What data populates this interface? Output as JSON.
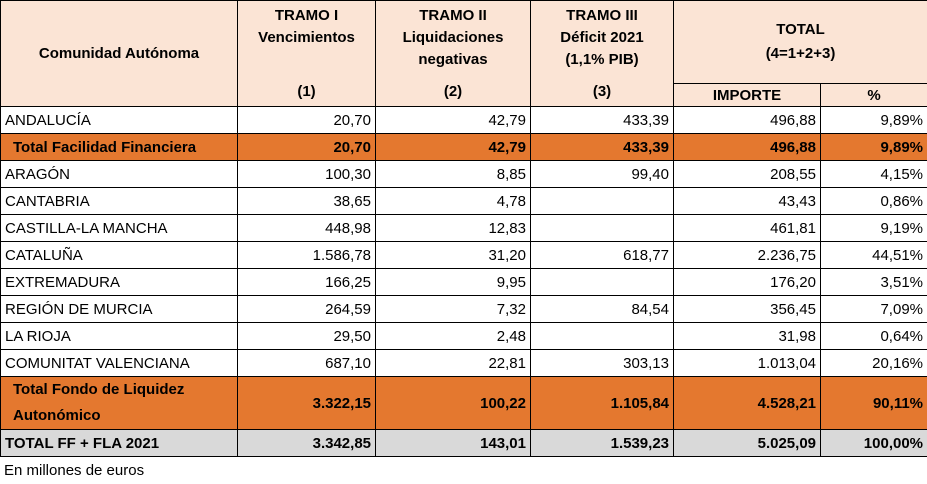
{
  "table": {
    "header": {
      "region": "Comunidad Autónoma",
      "tramo_1": {
        "title": "TRAMO I",
        "subtitle": "Vencimientos",
        "number": "(1)"
      },
      "tramo_2": {
        "title": "TRAMO II",
        "subtitle": "Liquidaciones negativas",
        "number": "(2)"
      },
      "tramo_3": {
        "title": "TRAMO III",
        "subtitle": "Déficit 2021",
        "note": "(1,1% PIB)",
        "number": "(3)"
      },
      "total": {
        "title": "TOTAL",
        "formula": "(4=1+2+3)",
        "importe": "IMPORTE",
        "percent": "%"
      }
    },
    "rows": [
      [
        "ANDALUCÍA",
        "20,70",
        "42,79",
        "433,39",
        "496,88",
        "9,89%"
      ],
      [
        "Total Facilidad Financiera",
        "20,70",
        "42,79",
        "433,39",
        "496,88",
        "9,89%"
      ],
      [
        "ARAGÓN",
        "100,30",
        "8,85",
        "99,40",
        "208,55",
        "4,15%"
      ],
      [
        "CANTABRIA",
        "38,65",
        "4,78",
        null,
        "43,43",
        "0,86%"
      ],
      [
        "CASTILLA-LA MANCHA",
        "448,98",
        "12,83",
        null,
        "461,81",
        "9,19%"
      ],
      [
        "CATALUÑA",
        "1.586,78",
        "31,20",
        "618,77",
        "2.236,75",
        "44,51%"
      ],
      [
        "EXTREMADURA",
        "166,25",
        "9,95",
        null,
        "176,20",
        "3,51%"
      ],
      [
        "REGIÓN DE MURCIA",
        "264,59",
        "7,32",
        "84,54",
        "356,45",
        "7,09%"
      ],
      [
        "LA RIOJA",
        "29,50",
        "2,48",
        null,
        "31,98",
        "0,64%"
      ],
      [
        "COMUNITAT VALENCIANA",
        "687,10",
        "22,81",
        "303,13",
        "1.013,04",
        "20,16%"
      ],
      [
        "Total Fondo de Liquidez Autonómico",
        "3.322,15",
        "100,22",
        "1.105,84",
        "4.528,21",
        "90,11%"
      ],
      [
        "TOTAL FF + FLA 2021",
        "3.342,85",
        "143,01",
        "1.539,23",
        "5.025,09",
        "100,00%"
      ]
    ],
    "footnote": "En millones de euros"
  }
}
